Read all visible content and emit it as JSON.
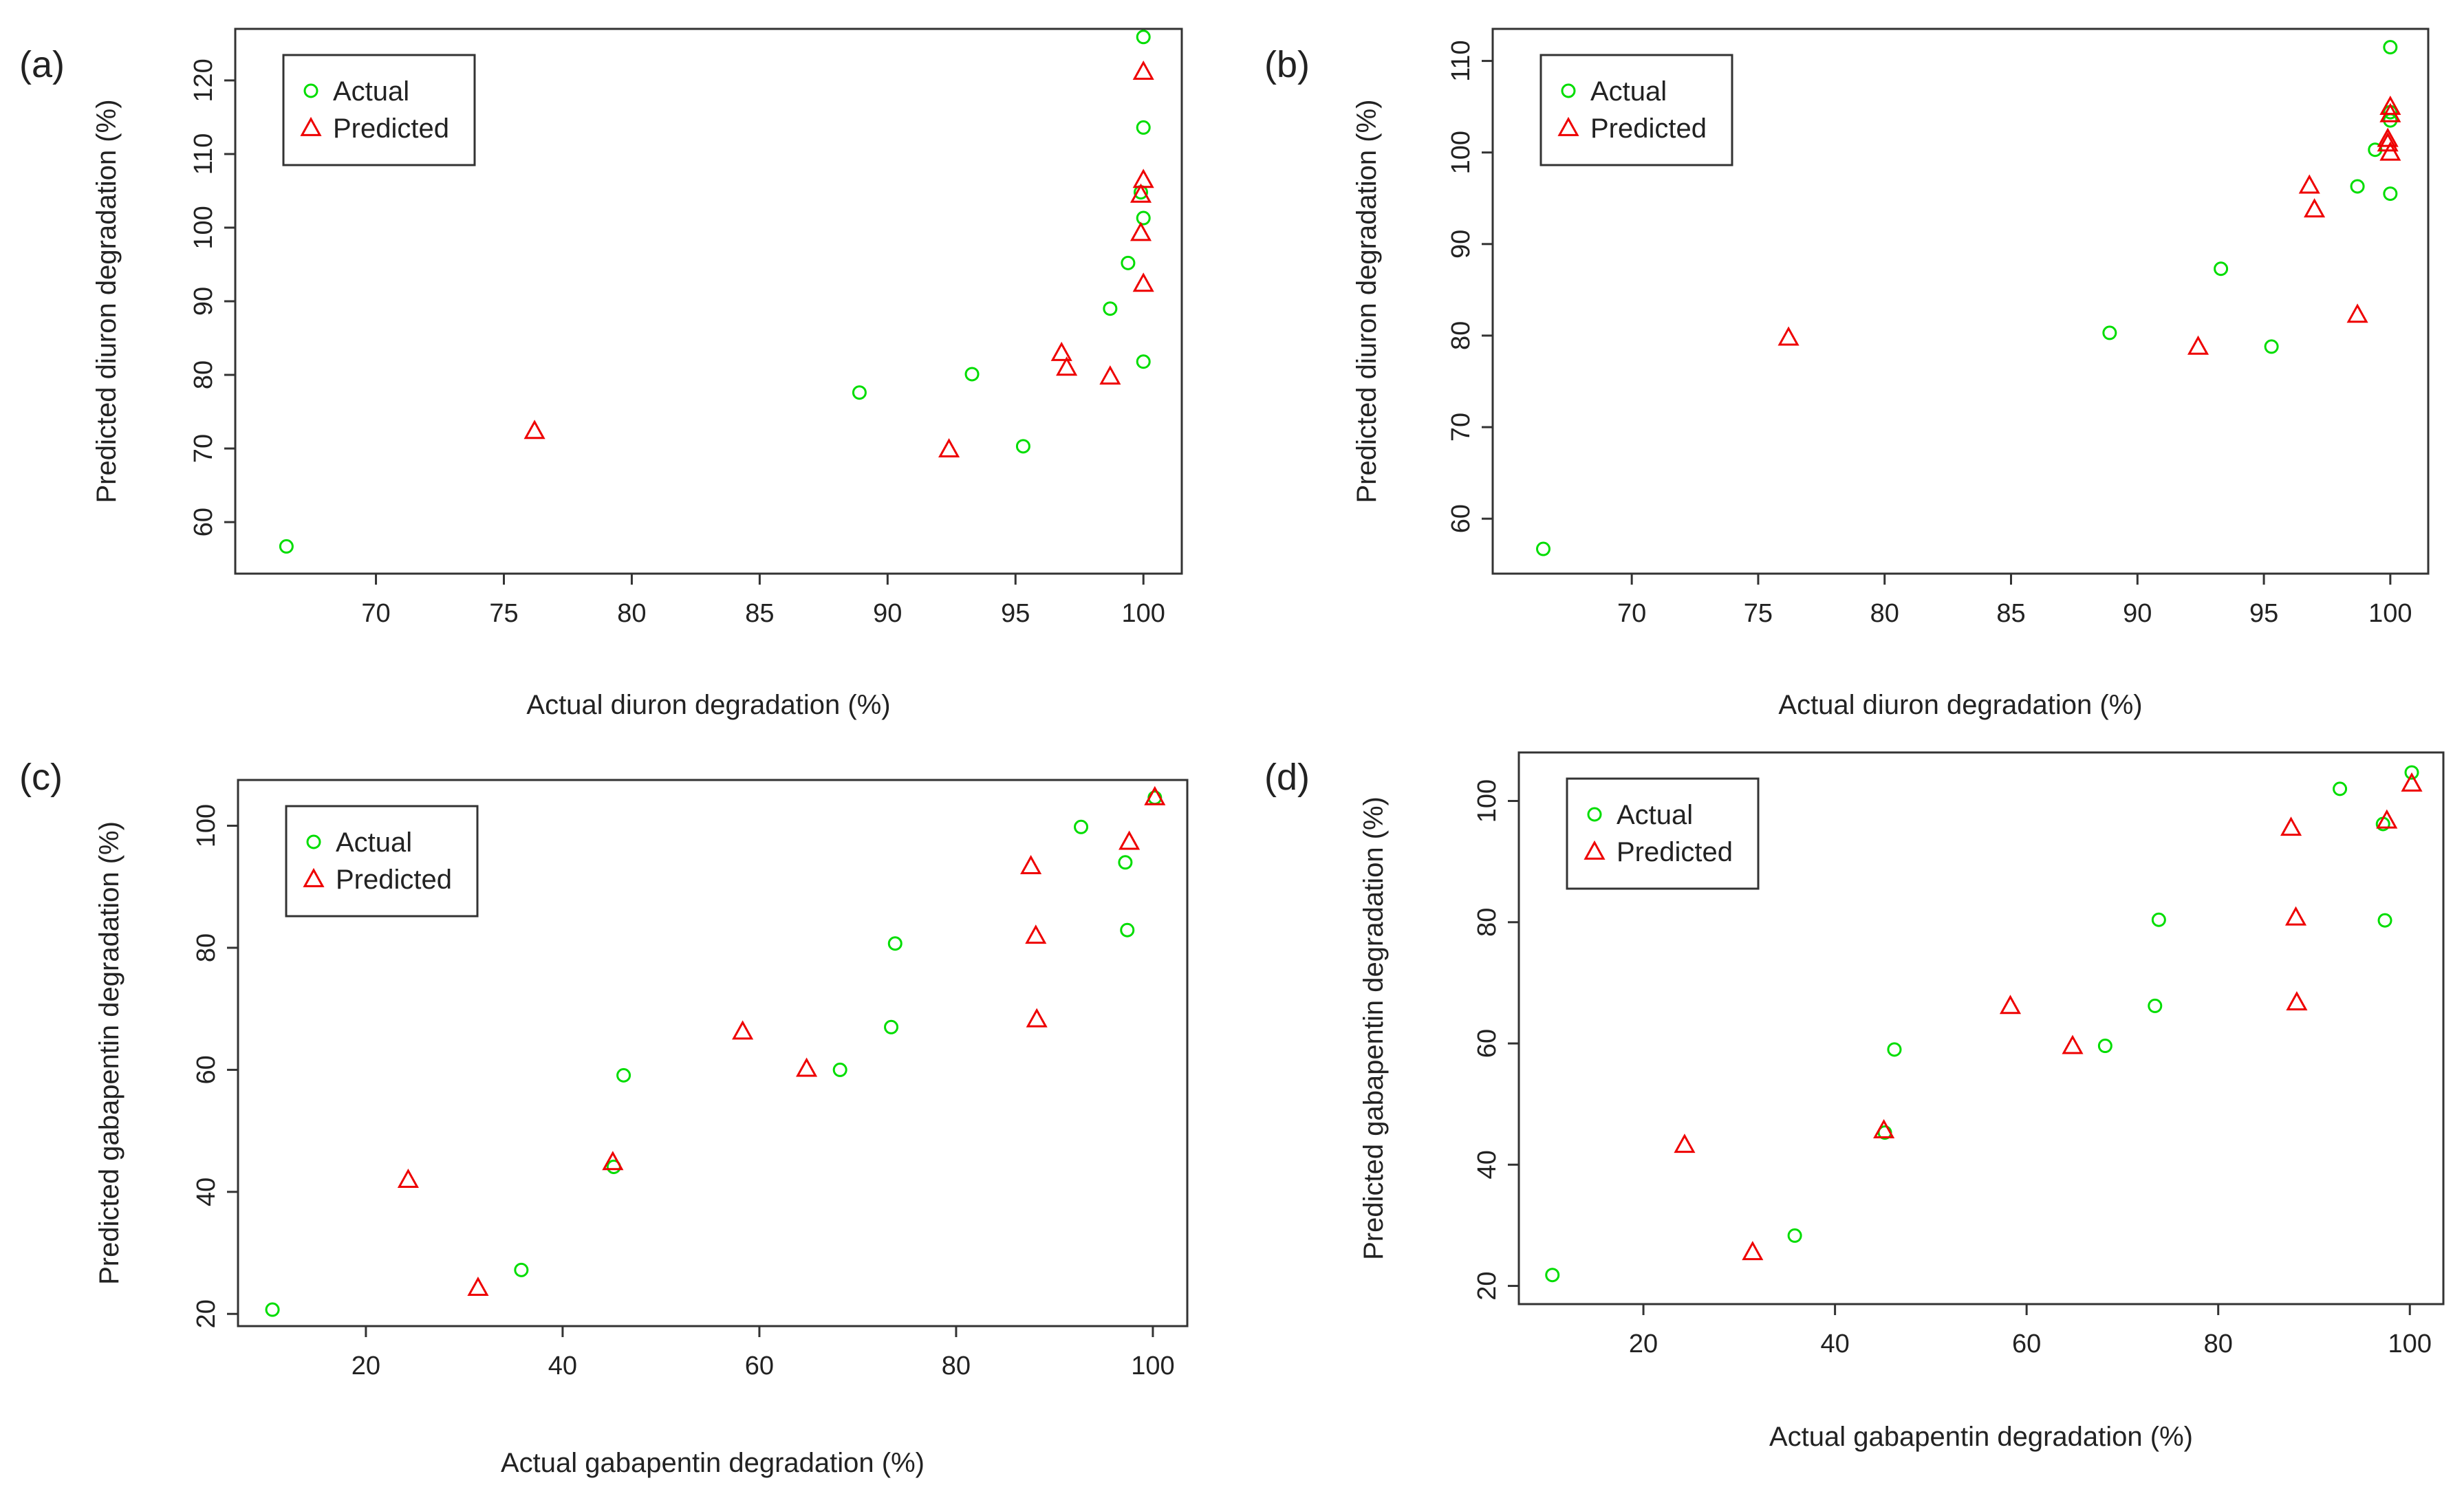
{
  "chart_data": [
    {
      "panel_label": "(a)",
      "type": "scatter",
      "xlabel": "Actual diuron degradation (%)",
      "ylabel": "Predicted diuron degradation (%)",
      "xlim": [
        64.5,
        101.5
      ],
      "ylim": [
        53,
        127
      ],
      "xticks": [
        70,
        75,
        80,
        85,
        90,
        95,
        100
      ],
      "yticks": [
        60,
        70,
        80,
        90,
        100,
        110,
        120
      ],
      "legend": {
        "position": "top-left",
        "entries": [
          "Actual",
          "Predicted"
        ]
      },
      "series": [
        {
          "name": "Actual",
          "marker": "circle",
          "color": "#00dd00",
          "x": [
            66.5,
            88.9,
            93.3,
            95.3,
            98.7,
            99.4,
            99.9,
            100.0,
            100.0,
            100.0,
            100.0
          ],
          "y": [
            56.7,
            77.6,
            80.1,
            70.3,
            89.0,
            95.2,
            104.8,
            101.3,
            113.6,
            125.9,
            81.8
          ]
        },
        {
          "name": "Predicted",
          "marker": "triangle",
          "color": "#ee0000",
          "x": [
            76.2,
            92.4,
            96.8,
            97.0,
            98.7,
            99.9,
            99.9,
            100.0,
            100.0,
            100.0
          ],
          "y": [
            72.4,
            69.9,
            83.0,
            81.0,
            79.8,
            99.3,
            104.5,
            106.5,
            121.2,
            92.4
          ]
        }
      ]
    },
    {
      "panel_label": "(b)",
      "type": "scatter",
      "xlabel": "Actual diuron degradation (%)",
      "ylabel": "Predicted diuron degradation (%)",
      "xlim": [
        64.5,
        101.5
      ],
      "ylim": [
        54,
        113.5
      ],
      "xticks": [
        70,
        75,
        80,
        85,
        90,
        95,
        100
      ],
      "yticks": [
        60,
        70,
        80,
        90,
        100,
        110
      ],
      "legend": {
        "position": "top-left",
        "entries": [
          "Actual",
          "Predicted"
        ]
      },
      "series": [
        {
          "name": "Actual",
          "marker": "circle",
          "color": "#00dd00",
          "x": [
            66.5,
            88.9,
            93.3,
            95.3,
            98.7,
            99.4,
            100.0,
            100.0,
            100.0,
            100.0
          ],
          "y": [
            56.7,
            80.3,
            87.3,
            78.8,
            96.3,
            100.3,
            95.5,
            103.5,
            104.4,
            111.5
          ]
        },
        {
          "name": "Predicted",
          "marker": "triangle",
          "color": "#ee0000",
          "x": [
            76.2,
            92.4,
            96.8,
            97.0,
            98.7,
            99.9,
            99.9,
            100.0,
            100.0,
            100.0
          ],
          "y": [
            79.8,
            78.8,
            96.4,
            93.8,
            82.3,
            101.0,
            101.5,
            100.0,
            104.2,
            105.0
          ]
        }
      ]
    },
    {
      "panel_label": "(c)",
      "type": "scatter",
      "xlabel": "Actual gabapentin degradation (%)",
      "ylabel": "Predicted gabapentin degradation (%)",
      "xlim": [
        7,
        103.5
      ],
      "ylim": [
        18,
        107.5
      ],
      "xticks": [
        20,
        40,
        60,
        80,
        100
      ],
      "yticks": [
        20,
        40,
        60,
        80,
        100
      ],
      "legend": {
        "position": "top-left",
        "entries": [
          "Actual",
          "Predicted"
        ]
      },
      "series": [
        {
          "name": "Actual",
          "marker": "circle",
          "color": "#00dd00",
          "x": [
            10.5,
            35.8,
            45.2,
            46.2,
            68.2,
            73.4,
            73.8,
            92.7,
            97.2,
            97.4,
            100.2
          ],
          "y": [
            20.7,
            27.2,
            44.1,
            59.1,
            60.0,
            67.0,
            80.7,
            99.8,
            94.0,
            82.9,
            104.6
          ]
        },
        {
          "name": "Predicted",
          "marker": "triangle",
          "color": "#ee0000",
          "x": [
            24.3,
            31.4,
            45.1,
            58.3,
            64.8,
            87.6,
            88.1,
            88.2,
            97.6,
            100.2
          ],
          "y": [
            42.0,
            24.3,
            44.9,
            66.3,
            60.2,
            93.4,
            82.0,
            68.3,
            97.4,
            104.7
          ]
        }
      ]
    },
    {
      "panel_label": "(d)",
      "type": "scatter",
      "xlabel": "Actual gabapentin degradation (%)",
      "ylabel": "Predicted gabapentin degradation (%)",
      "xlim": [
        7,
        103.5
      ],
      "ylim": [
        17,
        108
      ],
      "xticks": [
        20,
        40,
        60,
        80,
        100
      ],
      "yticks": [
        20,
        40,
        60,
        80,
        100
      ],
      "legend": {
        "position": "top-left",
        "entries": [
          "Actual",
          "Predicted"
        ]
      },
      "series": [
        {
          "name": "Actual",
          "marker": "circle",
          "color": "#00dd00",
          "x": [
            10.5,
            35.8,
            45.2,
            46.2,
            68.2,
            73.4,
            73.8,
            92.7,
            97.2,
            97.4,
            100.2
          ],
          "y": [
            21.8,
            28.3,
            45.3,
            59.0,
            59.6,
            66.2,
            80.4,
            102.0,
            96.2,
            80.3,
            104.7
          ]
        },
        {
          "name": "Predicted",
          "marker": "triangle",
          "color": "#ee0000",
          "x": [
            24.3,
            31.4,
            45.1,
            58.3,
            64.8,
            87.6,
            88.1,
            88.2,
            97.6,
            100.2
          ],
          "y": [
            43.3,
            25.6,
            45.7,
            66.2,
            59.6,
            95.6,
            80.8,
            66.8,
            96.8,
            102.9
          ]
        }
      ]
    }
  ]
}
